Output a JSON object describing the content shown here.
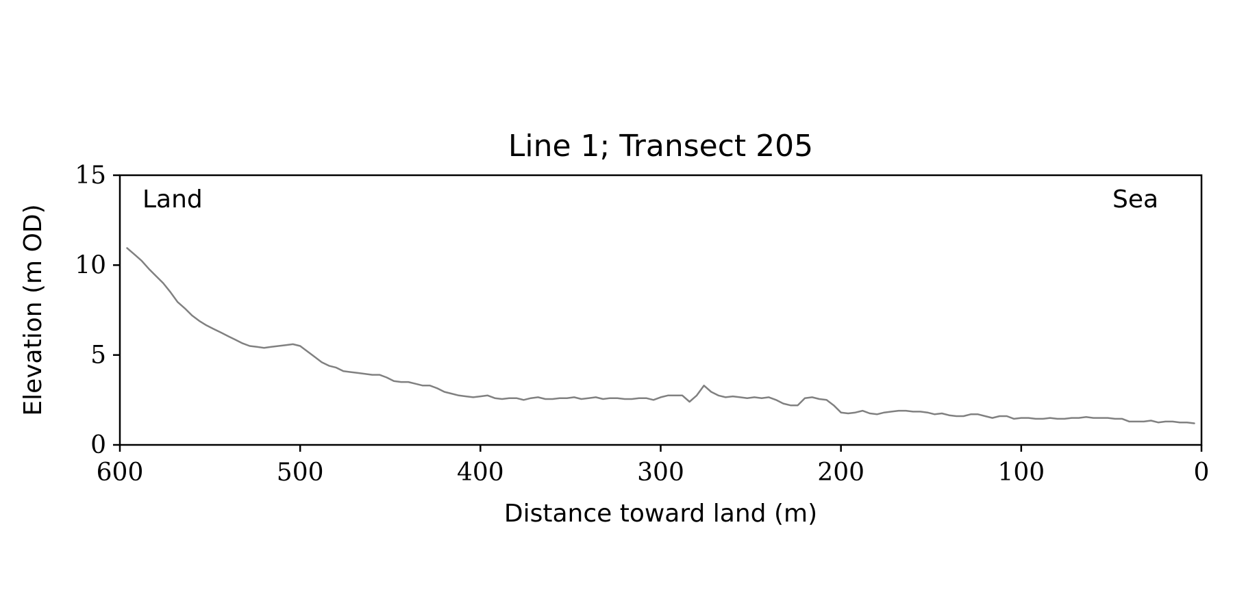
{
  "chart_data": {
    "type": "line",
    "title": "Line 1; Transect 205",
    "xlabel": "Distance toward land (m)",
    "ylabel": "Elevation (m OD)",
    "xlim": [
      600,
      0
    ],
    "ylim": [
      0,
      15
    ],
    "x_inverted": true,
    "xticks": [
      600,
      500,
      400,
      300,
      200,
      100,
      0
    ],
    "yticks": [
      0,
      5,
      10,
      15
    ],
    "grid": false,
    "line_color": "#808080",
    "annotations": {
      "left": "Land",
      "right": "Sea"
    },
    "series": [
      {
        "x": [
          596,
          592,
          588,
          584,
          580,
          576,
          572,
          568,
          564,
          560,
          556,
          552,
          548,
          544,
          540,
          536,
          532,
          528,
          524,
          520,
          516,
          512,
          508,
          504,
          500,
          496,
          492,
          488,
          484,
          480,
          476,
          472,
          468,
          464,
          460,
          456,
          452,
          448,
          444,
          440,
          436,
          432,
          428,
          424,
          420,
          416,
          412,
          408,
          404,
          400,
          396,
          392,
          388,
          384,
          380,
          376,
          372,
          368,
          364,
          360,
          356,
          352,
          348,
          344,
          340,
          336,
          332,
          328,
          324,
          320,
          316,
          312,
          308,
          304,
          300,
          296,
          292,
          288,
          284,
          280,
          276,
          272,
          268,
          264,
          260,
          256,
          252,
          248,
          244,
          240,
          236,
          232,
          228,
          224,
          220,
          216,
          212,
          208,
          204,
          200,
          196,
          192,
          188,
          184,
          180,
          176,
          172,
          168,
          164,
          160,
          156,
          152,
          148,
          144,
          140,
          136,
          132,
          128,
          124,
          120,
          116,
          112,
          108,
          104,
          100,
          96,
          92,
          88,
          84,
          80,
          76,
          72,
          68,
          64,
          60,
          56,
          52,
          48,
          44,
          40,
          36,
          32,
          28,
          24,
          20,
          16,
          12,
          8,
          4
        ],
        "y": [
          10.95,
          10.6,
          10.25,
          9.8,
          9.4,
          9.0,
          8.5,
          7.95,
          7.6,
          7.2,
          6.9,
          6.65,
          6.45,
          6.25,
          6.05,
          5.85,
          5.65,
          5.5,
          5.45,
          5.4,
          5.45,
          5.5,
          5.55,
          5.6,
          5.5,
          5.2,
          4.9,
          4.6,
          4.4,
          4.3,
          4.1,
          4.05,
          4.0,
          3.95,
          3.9,
          3.9,
          3.75,
          3.55,
          3.5,
          3.5,
          3.4,
          3.3,
          3.3,
          3.15,
          2.95,
          2.85,
          2.75,
          2.7,
          2.65,
          2.7,
          2.75,
          2.6,
          2.55,
          2.6,
          2.6,
          2.5,
          2.6,
          2.65,
          2.55,
          2.55,
          2.6,
          2.6,
          2.65,
          2.55,
          2.6,
          2.65,
          2.55,
          2.6,
          2.6,
          2.55,
          2.55,
          2.6,
          2.6,
          2.5,
          2.65,
          2.75,
          2.75,
          2.75,
          2.4,
          2.75,
          3.3,
          2.95,
          2.75,
          2.65,
          2.7,
          2.65,
          2.6,
          2.65,
          2.6,
          2.65,
          2.5,
          2.3,
          2.2,
          2.2,
          2.6,
          2.65,
          2.55,
          2.5,
          2.2,
          1.8,
          1.75,
          1.8,
          1.9,
          1.75,
          1.7,
          1.8,
          1.85,
          1.9,
          1.9,
          1.85,
          1.85,
          1.8,
          1.7,
          1.75,
          1.65,
          1.6,
          1.6,
          1.7,
          1.7,
          1.6,
          1.5,
          1.6,
          1.6,
          1.45,
          1.5,
          1.5,
          1.45,
          1.45,
          1.5,
          1.45,
          1.45,
          1.5,
          1.5,
          1.55,
          1.5,
          1.5,
          1.5,
          1.45,
          1.45,
          1.3,
          1.3,
          1.3,
          1.35,
          1.25,
          1.3,
          1.3,
          1.25,
          1.25,
          1.2
        ]
      }
    ]
  }
}
